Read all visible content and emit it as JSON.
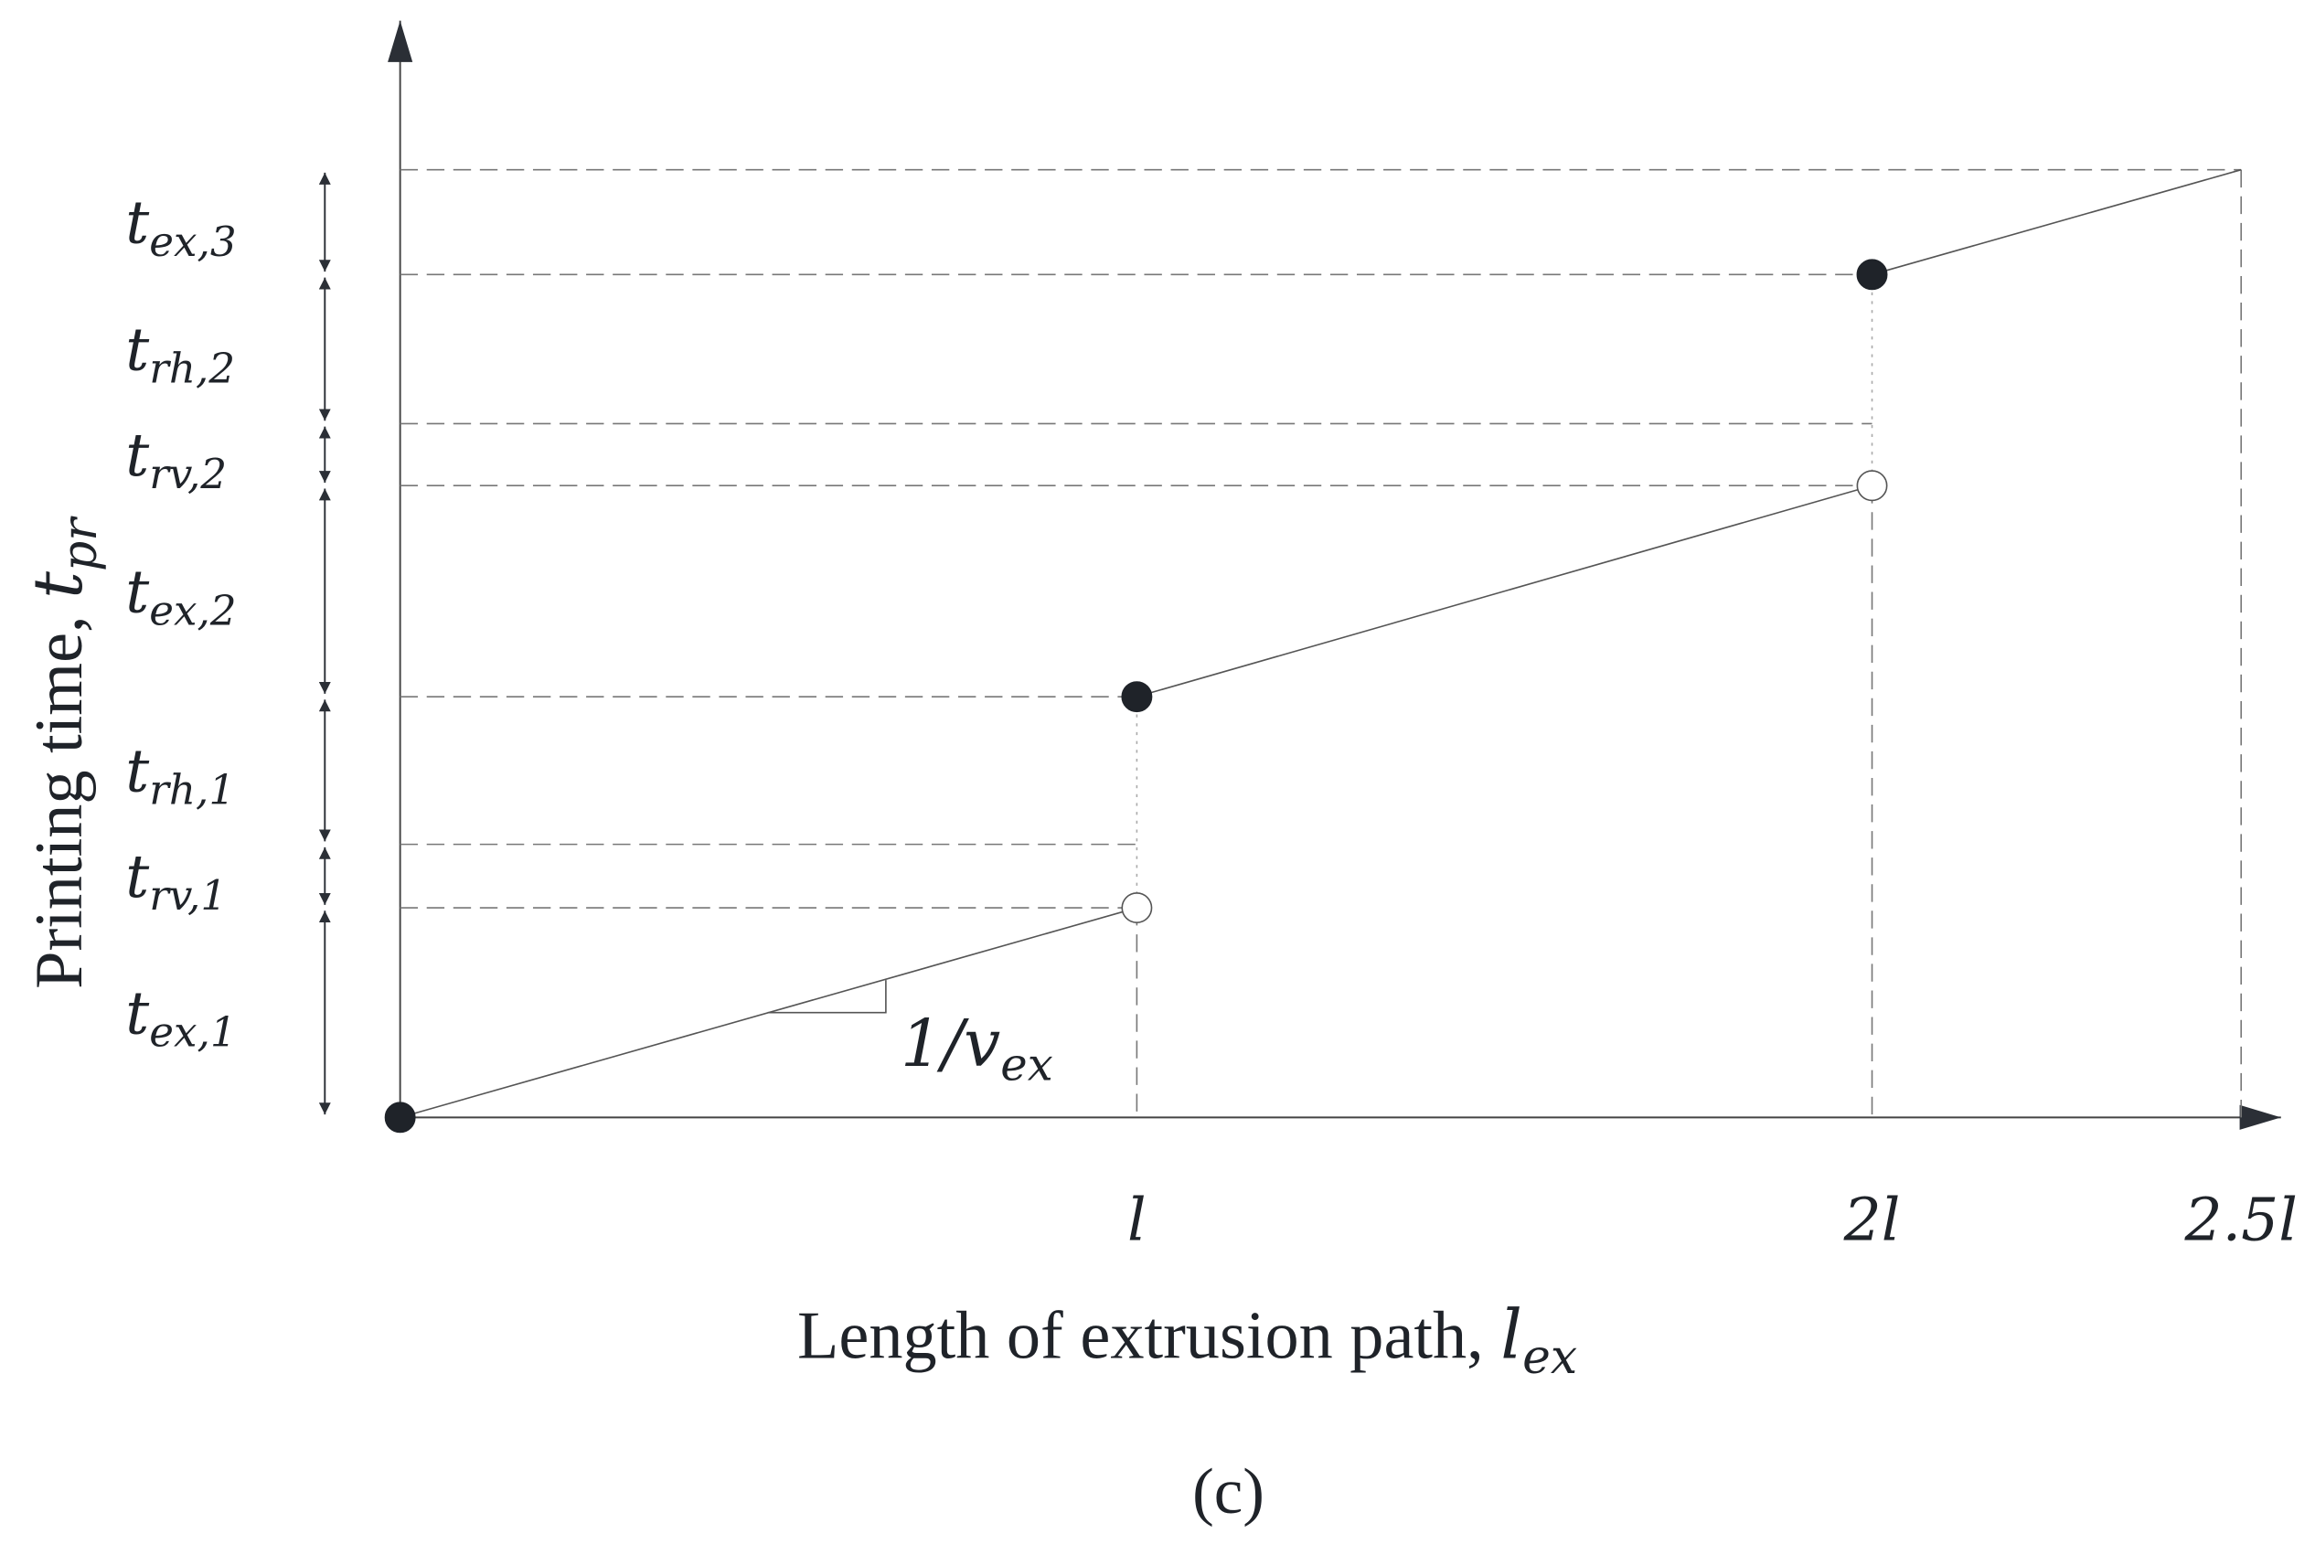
{
  "axes": {
    "y_label": {
      "prefix": "Printing time, ",
      "base": "t",
      "sub": "pr"
    },
    "x_label": {
      "prefix": "Length of extrusion path, ",
      "base": "l",
      "sub": "ex"
    },
    "x_ticks": [
      "l",
      "2l",
      "2.5l"
    ]
  },
  "segments": [
    {
      "base": "t",
      "sub": "ex,1"
    },
    {
      "base": "t",
      "sub": "rv,1"
    },
    {
      "base": "t",
      "sub": "rh,1"
    },
    {
      "base": "t",
      "sub": "ex,2"
    },
    {
      "base": "t",
      "sub": "rv,2"
    },
    {
      "base": "t",
      "sub": "rh,2"
    },
    {
      "base": "t",
      "sub": "ex,3"
    }
  ],
  "slope": {
    "prefix": "1/",
    "base": "v",
    "sub": "ex"
  },
  "caption": "(c)"
}
